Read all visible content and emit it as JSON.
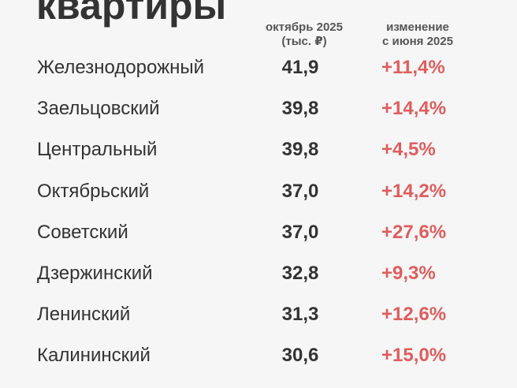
{
  "title": "квартиры",
  "table": {
    "columns": [
      [
        "октябрь 2025",
        "(тыс. ₽)"
      ],
      [
        "изменение",
        "с июня 2025"
      ]
    ],
    "rows": [
      [
        "Железнодорожный",
        "41,9",
        "+11,4%"
      ],
      [
        "Заельцовский",
        "39,8",
        "+14,4%"
      ],
      [
        "Центральный",
        "39,8",
        "+4,5%"
      ],
      [
        "Октябрьский",
        "37,0",
        "+14,2%"
      ],
      [
        "Советский",
        "37,0",
        "+27,6%"
      ],
      [
        "Дзержинский",
        "32,8",
        "+9,3%"
      ],
      [
        "Ленинский",
        "31,3",
        "+12,6%"
      ],
      [
        "Калининский",
        "30,6",
        "+15,0%"
      ]
    ]
  }
}
